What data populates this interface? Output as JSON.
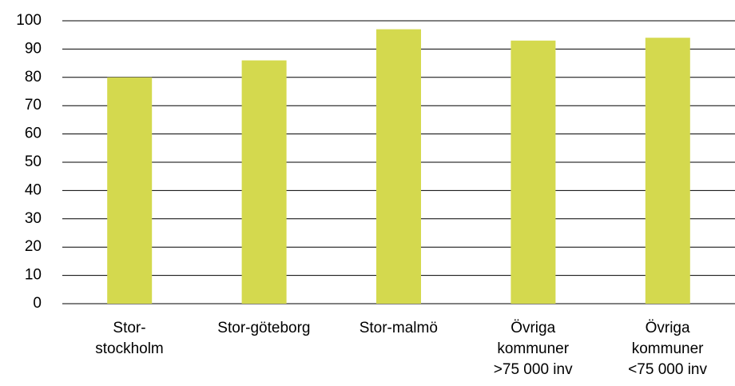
{
  "chart_data": {
    "type": "bar",
    "categories": [
      "Stor-\nstockholm",
      "Stor-göteborg",
      "Stor-malmö",
      "Övriga\nkommuner\n>75 000 inv",
      "Övriga\nkommuner\n<75 000 inv"
    ],
    "values": [
      80,
      86,
      97,
      93,
      94
    ],
    "color": "#d4d94e",
    "ylim": [
      0,
      100
    ],
    "yticks": [
      0,
      10,
      20,
      30,
      40,
      50,
      60,
      70,
      80,
      90,
      100
    ],
    "grid": true
  }
}
